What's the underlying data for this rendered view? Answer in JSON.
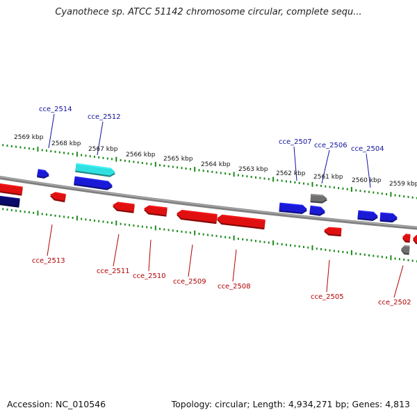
{
  "header": {
    "title": "Cyanothece sp. ATCC 51142 chromosome circular, complete sequ..."
  },
  "footer": {
    "accession": "Accession: NC_010546",
    "summary": "Topology: circular; Length: 4,934,271 bp; Genes: 4,813"
  },
  "colors": {
    "backbone": "#808080",
    "tick": "#1a8a1a",
    "forward_gene": "#1a1ad6",
    "reverse_gene": "#e01010",
    "highlight_gene": "#30e0e0",
    "dark_gene": "#0a0a6a",
    "neutral_gene": "#707070",
    "forward_label": "#1010a0",
    "reverse_label": "#b00000",
    "scale_label": "#111111"
  },
  "scale_labels": [
    "2569 kbp",
    "2568 kbp",
    "2567 kbp",
    "2566 kbp",
    "2565 kbp",
    "2564 kbp",
    "2563 kbp",
    "2562 kbp",
    "2561 kbp",
    "2560 kbp",
    "2559 kbp"
  ],
  "forward_labels": [
    "cce_2514",
    "cce_2512",
    "cce_2507",
    "cce_2506",
    "cce_2504"
  ],
  "reverse_labels": [
    "cce_2513",
    "cce_2511",
    "cce_2510",
    "cce_2509",
    "cce_2508",
    "cce_2505",
    "cce_2502"
  ]
}
